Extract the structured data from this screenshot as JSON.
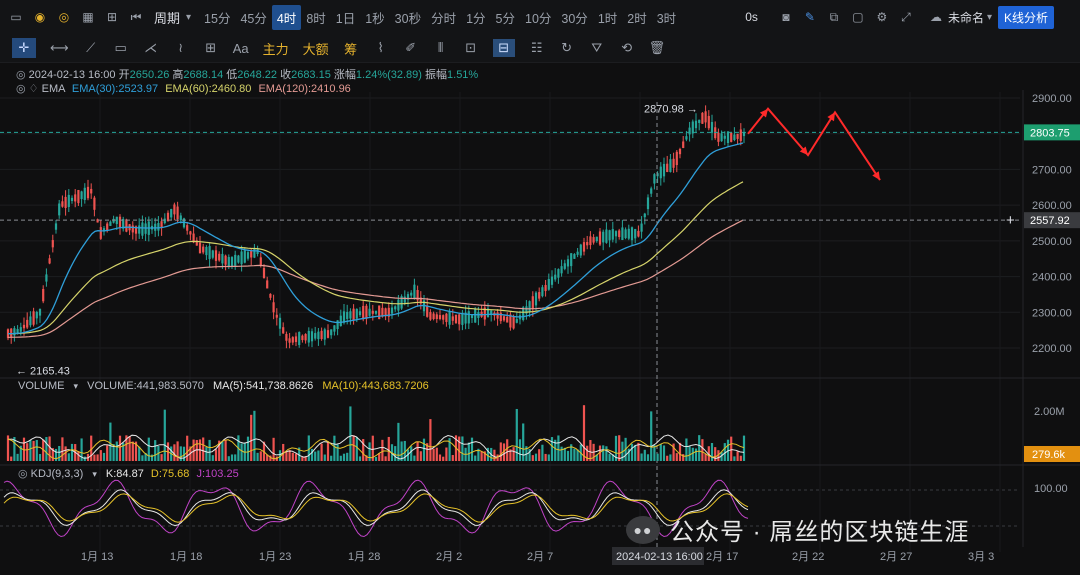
{
  "toolbar": {
    "period_label": "周期",
    "timeframes": [
      "15分",
      "45分",
      "4时",
      "8时",
      "1日",
      "1秒",
      "30秒",
      "分时",
      "1分",
      "5分",
      "10分",
      "30分",
      "1时",
      "2时",
      "3时"
    ],
    "active_timeframe": "4时",
    "seconds_label": "0s",
    "unnamed_label": "未命名",
    "kline_button": "K线分析"
  },
  "drawing_tools": {
    "text_tool": "Aa",
    "main_label": "主力",
    "large_label": "大额",
    "chips_label": "筹"
  },
  "ohlc_info": {
    "datetime": "2024-02-13 16:00",
    "open_label": "开",
    "open": "2650.26",
    "high_label": "高",
    "high": "2688.14",
    "low_label": "低",
    "low": "2648.22",
    "close_label": "收",
    "close": "2683.15",
    "change_label": "涨幅",
    "change": "1.24%(32.89)",
    "amplitude_label": "振幅",
    "amplitude": "1.51%"
  },
  "ema_info": {
    "name": "EMA",
    "ema30": "EMA(30):2523.97",
    "ema60": "EMA(60):2460.80",
    "ema120": "EMA(120):2410.96"
  },
  "volume_info": {
    "name": "VOLUME",
    "volume": "VOLUME:441,983.5070",
    "ma5": "MA(5):541,738.8626",
    "ma10": "MA(10):443,683.7206"
  },
  "kdj_info": {
    "name": "KDJ(9,3,3)",
    "k": "K:84.87",
    "d": "D:75.68",
    "j": "J:103.25"
  },
  "watermark": {
    "text": "公众号 · 屌丝的区块链生涯"
  },
  "colors": {
    "up": "#26a69a",
    "down": "#ef5350",
    "ema30": "#2f9fd9",
    "ema60": "#d6d46b",
    "ema120": "#e39a93",
    "ma5": "#e8e8e8",
    "ma10": "#e6c229",
    "k_line": "#e8e8e8",
    "d_line": "#e6c229",
    "j_line": "#c043c7",
    "arrow": "#ff2a2a",
    "price_tag": "#1d9e6f",
    "volume_tag": "#e39010"
  },
  "chart_data": {
    "type": "candlestick",
    "price_axis": {
      "ticks": [
        2200,
        2300,
        2400,
        2500,
        2600,
        2700,
        2800,
        2900
      ],
      "tick_labels": [
        "2200.00",
        "2300.00",
        "2400.00",
        "2500.00",
        "2600.00",
        "2700.00",
        "2800.00",
        "2900.00"
      ],
      "range": [
        2140,
        2940
      ]
    },
    "current_price": 2803.75,
    "current_price_label": "2803.75",
    "cursor_price": 2557.92,
    "cursor_price_label": "2557.92",
    "annotated_high_label": "2870.98",
    "annotated_high": 2870.98,
    "annotated_low_label": "2165.43",
    "annotated_low": 2165.43,
    "cursor_time_label": "2024-02-13 16:00",
    "x_axis_labels": [
      "1月 13",
      "1月 18",
      "1月 23",
      "1月 28",
      "2月 2",
      "2月 7",
      "2月 17",
      "2月 22",
      "2月 27",
      "3月 3"
    ],
    "volume_axis": {
      "tick_labels": [
        "2.00M"
      ],
      "current_label": "279.6k",
      "current": 279600
    },
    "kdj_axis": {
      "tick_labels": [
        "100.00"
      ]
    },
    "ema": {
      "ema30": 2523.97,
      "ema60": 2460.8,
      "ema120": 2410.96
    },
    "projection": {
      "description_points": [
        2803,
        2870,
        2740,
        2860,
        2670
      ]
    }
  }
}
